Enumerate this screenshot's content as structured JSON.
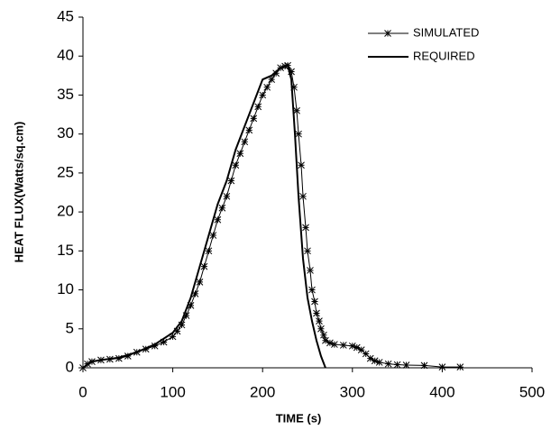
{
  "chart_data": {
    "type": "line",
    "xlabel": "TIME (s)",
    "ylabel": "HEAT FLUX(Watts/sq.cm)",
    "xlim": [
      0,
      500
    ],
    "xticks": [
      0,
      100,
      200,
      300,
      400,
      500
    ],
    "ylim": [
      0,
      45
    ],
    "yticks": [
      0,
      5,
      10,
      15,
      20,
      25,
      30,
      35,
      40,
      45
    ],
    "legend": "upper right",
    "series": [
      {
        "name": "SIMULATED",
        "color": "#000000",
        "marker": "star",
        "x": [
          0,
          5,
          10,
          20,
          30,
          40,
          50,
          60,
          70,
          80,
          90,
          100,
          105,
          110,
          115,
          120,
          125,
          130,
          135,
          140,
          145,
          150,
          155,
          160,
          165,
          170,
          175,
          180,
          185,
          190,
          195,
          200,
          205,
          210,
          215,
          220,
          225,
          228,
          232,
          235,
          238,
          240,
          243,
          245,
          248,
          250,
          253,
          255,
          258,
          260,
          263,
          265,
          268,
          270,
          275,
          280,
          290,
          300,
          305,
          310,
          315,
          320,
          325,
          330,
          340,
          350,
          360,
          380,
          400,
          420
        ],
        "values": [
          0,
          0.5,
          0.8,
          1,
          1.1,
          1.2,
          1.5,
          2,
          2.4,
          2.8,
          3.3,
          4,
          4.7,
          5.5,
          6.7,
          8,
          9.5,
          11,
          13,
          15,
          17,
          19,
          20.5,
          22,
          24,
          26,
          27.5,
          29,
          30.5,
          32,
          33.5,
          35,
          36,
          37,
          37.8,
          38.5,
          38.7,
          38.8,
          38,
          36,
          33,
          30,
          26,
          22,
          18,
          15,
          12.5,
          10,
          8.5,
          7,
          6,
          5,
          4.2,
          3.5,
          3.2,
          3,
          2.9,
          2.8,
          2.6,
          2.3,
          1.8,
          1.2,
          0.9,
          0.7,
          0.5,
          0.4,
          0.35,
          0.3,
          0.1,
          0.1
        ]
      },
      {
        "name": "REQUIRED",
        "color": "#000000",
        "marker": "none",
        "x": [
          0,
          10,
          20,
          40,
          60,
          80,
          100,
          110,
          120,
          130,
          140,
          150,
          160,
          170,
          180,
          190,
          200,
          210,
          220,
          228,
          232,
          236,
          240,
          245,
          250,
          255,
          260,
          265,
          270
        ],
        "values": [
          0,
          0.8,
          1,
          1.3,
          2,
          3,
          4.5,
          6,
          9,
          13,
          17,
          21,
          24,
          28,
          31,
          34,
          37,
          37.5,
          38.5,
          38.8,
          37,
          30,
          22,
          14,
          9,
          6,
          3.5,
          1.5,
          0
        ]
      }
    ]
  }
}
